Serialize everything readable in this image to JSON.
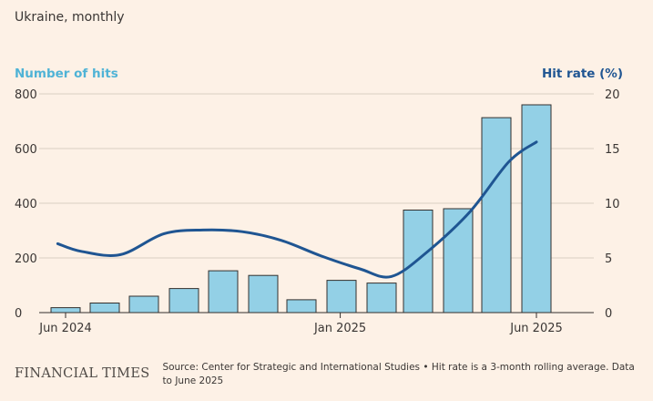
{
  "subtitle": "Ukraine, monthly",
  "footer": {
    "logo_text": "FINANCIAL TIMES",
    "source": "Source: Center for Strategic and International Studies • Hit rate is a 3-month rolling average. Data to June 2025"
  },
  "colors": {
    "bars": "#93d0e6",
    "bar_outline": "#33302e",
    "line": "#1f5592",
    "left_axis_label": "#4fb3d6",
    "right_axis_label": "#1f5592",
    "grid": "#d9cec3",
    "background": "#fdf1e6"
  },
  "chart_data": {
    "type": "bar+line",
    "left_axis": {
      "label": "Number of hits",
      "ticks": [
        0,
        200,
        400,
        600,
        800
      ],
      "range": [
        0,
        800
      ]
    },
    "right_axis": {
      "label": "Hit rate (%)",
      "ticks": [
        0,
        5,
        10,
        15,
        20
      ],
      "range": [
        0,
        20
      ]
    },
    "x_tick_labels": [
      {
        "label": "Jun 2024",
        "at_month": 0
      },
      {
        "label": "Jan 2025",
        "at_month": 7
      },
      {
        "label": "Jun 2025",
        "at_month": 12
      }
    ],
    "months": [
      "2024-06",
      "2024-07",
      "2024-08",
      "2024-09",
      "2024-10",
      "2024-11",
      "2024-12",
      "2025-01",
      "2025-02",
      "2025-03",
      "2025-04",
      "2025-05",
      "2025-06"
    ],
    "bars": {
      "name": "Number of hits",
      "values": [
        18,
        35,
        60,
        88,
        153,
        136,
        47,
        118,
        108,
        375,
        380,
        713,
        760
      ]
    },
    "line": {
      "name": "Hit rate (%)",
      "points": [
        [
          -0.2,
          6.3
        ],
        [
          0.4,
          5.6
        ],
        [
          1.4,
          5.3
        ],
        [
          2.5,
          7.2
        ],
        [
          3.5,
          7.55
        ],
        [
          4.5,
          7.4
        ],
        [
          5.5,
          6.6
        ],
        [
          6.5,
          5.2
        ],
        [
          7.5,
          4.0
        ],
        [
          8.3,
          3.3
        ],
        [
          9.2,
          5.5
        ],
        [
          10.3,
          9.2
        ],
        [
          11.3,
          13.8
        ],
        [
          12.0,
          15.6
        ]
      ]
    }
  }
}
